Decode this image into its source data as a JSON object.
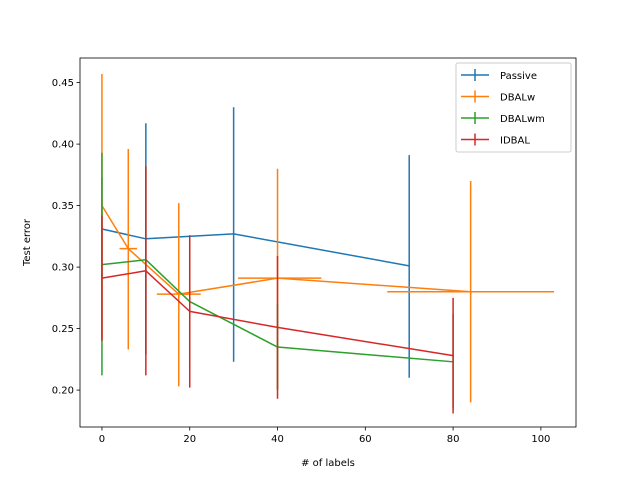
{
  "chart_data": {
    "type": "line",
    "title": "",
    "xlabel": "# of labels",
    "ylabel": "Test error",
    "xlim": [
      -5,
      108
    ],
    "ylim": [
      0.17,
      0.47
    ],
    "xticks": [
      0,
      20,
      40,
      60,
      80,
      100
    ],
    "yticks": [
      0.2,
      0.25,
      0.3,
      0.35,
      0.4,
      0.45
    ],
    "xtick_labels": [
      "0",
      "20",
      "40",
      "60",
      "80",
      "100"
    ],
    "ytick_labels": [
      "0.20",
      "0.25",
      "0.30",
      "0.35",
      "0.40",
      "0.45"
    ],
    "grid": false,
    "legend_position": "top-right",
    "series": [
      {
        "name": "Passive",
        "color": "#1f77b4",
        "points": [
          {
            "x": 0,
            "y": 0.331,
            "yerr": [
              0.29,
              0.373
            ],
            "xerr": null
          },
          {
            "x": 10,
            "y": 0.323,
            "yerr": [
              0.229,
              0.417
            ],
            "xerr": null
          },
          {
            "x": 30,
            "y": 0.327,
            "yerr": [
              0.223,
              0.43
            ],
            "xerr": null
          },
          {
            "x": 70,
            "y": 0.301,
            "yerr": [
              0.21,
              0.391
            ],
            "xerr": null
          }
        ]
      },
      {
        "name": "DBALw",
        "color": "#ff7f0e",
        "points": [
          {
            "x": 0,
            "y": 0.35,
            "yerr": [
              0.242,
              0.457
            ],
            "xerr": null
          },
          {
            "x": 6,
            "y": 0.315,
            "yerr": [
              0.233,
              0.396
            ],
            "xerr": [
              4,
              8
            ]
          },
          {
            "x": 17.5,
            "y": 0.278,
            "yerr": [
              0.203,
              0.352
            ],
            "xerr": [
              12.5,
              22.5
            ]
          },
          {
            "x": 40,
            "y": 0.291,
            "yerr": [
              0.201,
              0.38
            ],
            "xerr": [
              31,
              50
            ]
          },
          {
            "x": 84,
            "y": 0.28,
            "yerr": [
              0.19,
              0.37
            ],
            "xerr": [
              65,
              103
            ]
          }
        ]
      },
      {
        "name": "DBALwm",
        "color": "#2ca02c",
        "points": [
          {
            "x": 0,
            "y": 0.302,
            "yerr": [
              0.212,
              0.393
            ],
            "xerr": null
          },
          {
            "x": 10,
            "y": 0.306,
            "yerr": [
              0.229,
              0.382
            ],
            "xerr": null
          },
          {
            "x": 20,
            "y": 0.272,
            "yerr": [
              0.22,
              0.325
            ],
            "xerr": null
          },
          {
            "x": 40,
            "y": 0.235,
            "yerr": [
              0.2,
              0.27
            ],
            "xerr": null
          },
          {
            "x": 80,
            "y": 0.223,
            "yerr": [
              0.185,
              0.262
            ],
            "xerr": null
          }
        ]
      },
      {
        "name": "IDBAL",
        "color": "#d62728",
        "points": [
          {
            "x": 0,
            "y": 0.291,
            "yerr": [
              0.24,
              0.342
            ],
            "xerr": null
          },
          {
            "x": 10,
            "y": 0.297,
            "yerr": [
              0.212,
              0.382
            ],
            "xerr": null
          },
          {
            "x": 20,
            "y": 0.264,
            "yerr": [
              0.202,
              0.326
            ],
            "xerr": null
          },
          {
            "x": 40,
            "y": 0.251,
            "yerr": [
              0.193,
              0.309
            ],
            "xerr": null
          },
          {
            "x": 80,
            "y": 0.228,
            "yerr": [
              0.181,
              0.275
            ],
            "xerr": null
          }
        ]
      }
    ]
  }
}
